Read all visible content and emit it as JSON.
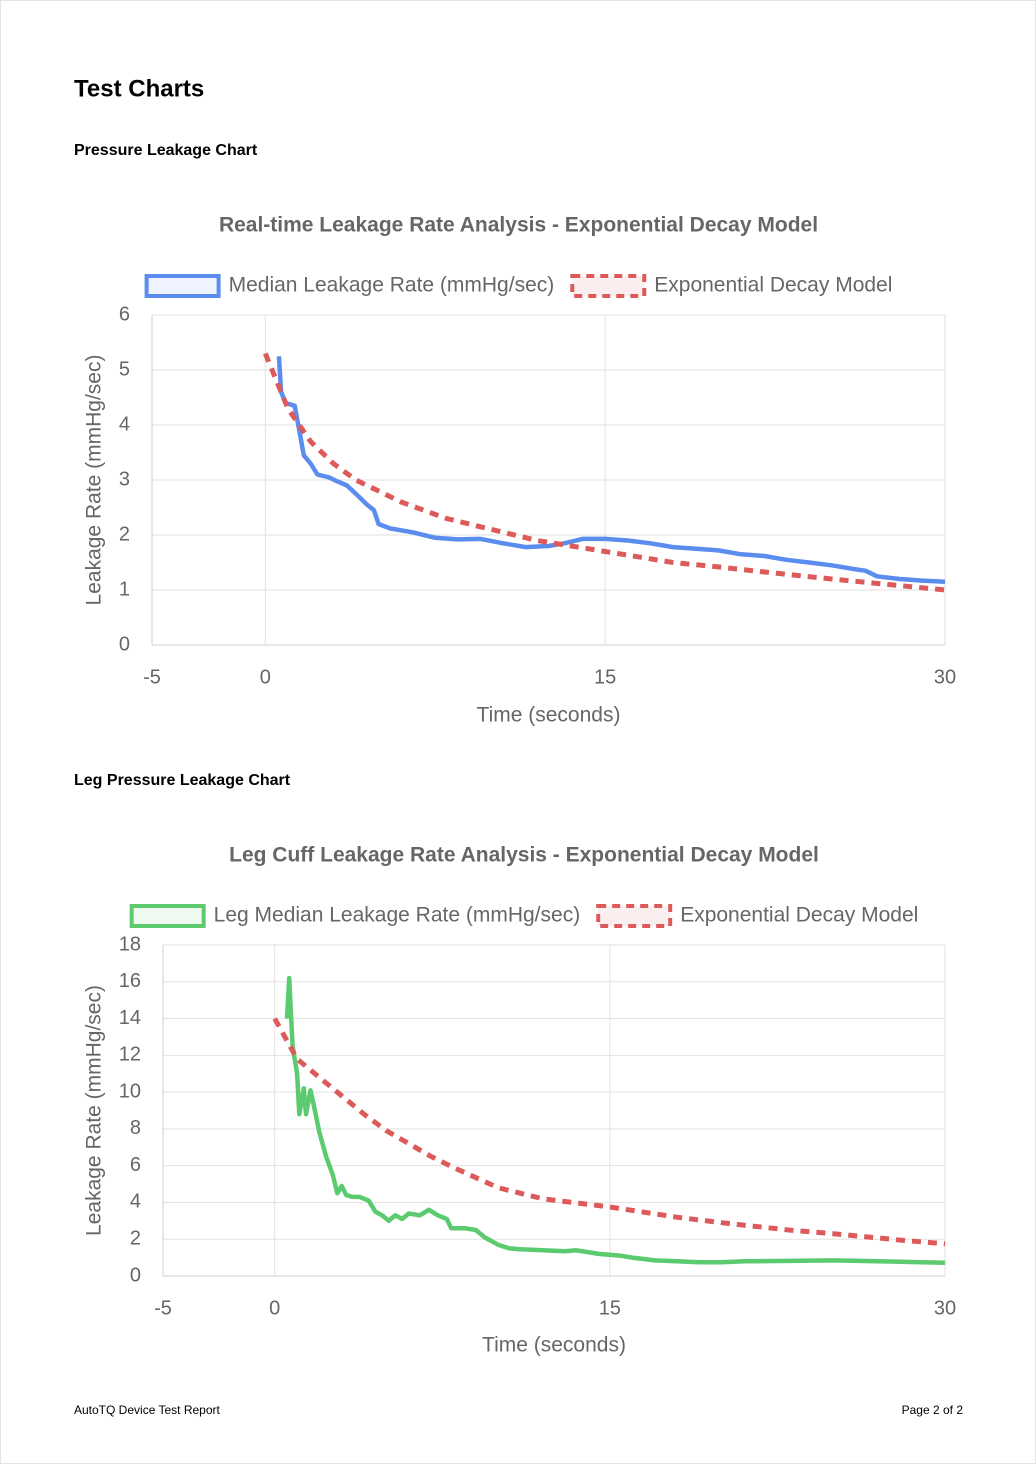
{
  "title": "Test Charts",
  "sections": [
    "Pressure Leakage Chart",
    "Leg Pressure Leakage Chart"
  ],
  "footer": {
    "left": "AutoTQ Device Test Report",
    "right": "Page 2 of 2"
  },
  "chart_data": [
    {
      "type": "line",
      "title": "Real-time Leakage Rate Analysis - Exponential Decay Model",
      "x_label": "Time (seconds)",
      "y_label": "Leakage Rate (mmHg/sec)",
      "xlim": [
        -5,
        30
      ],
      "xticks": [
        -5,
        0,
        15,
        30
      ],
      "ylim": [
        0,
        6
      ],
      "yticks": [
        0,
        1,
        2,
        3,
        4,
        5,
        6
      ],
      "grid": true,
      "legend": "top",
      "series": [
        {
          "name": "Median Leakage Rate (mmHg/sec)",
          "color": "#5b8dee",
          "dash": false,
          "x": [
            0.6,
            0.7,
            0.9,
            1.3,
            1.5,
            1.7,
            2.0,
            2.3,
            2.8,
            3.2,
            3.6,
            4.0,
            4.5,
            4.8,
            5.0,
            5.5,
            6.5,
            7.5,
            8.5,
            9.5,
            10.5,
            11.5,
            12.5,
            13.2,
            14.0,
            15,
            16,
            17,
            18,
            19,
            20,
            21,
            22,
            23,
            24,
            25,
            26,
            26.5,
            27,
            28,
            29,
            30
          ],
          "values": [
            5.25,
            4.6,
            4.4,
            4.35,
            3.9,
            3.45,
            3.3,
            3.1,
            3.05,
            2.97,
            2.9,
            2.75,
            2.55,
            2.45,
            2.2,
            2.12,
            2.05,
            1.95,
            1.92,
            1.93,
            1.85,
            1.78,
            1.8,
            1.85,
            1.93,
            1.93,
            1.9,
            1.85,
            1.78,
            1.75,
            1.72,
            1.65,
            1.62,
            1.55,
            1.5,
            1.45,
            1.38,
            1.35,
            1.25,
            1.2,
            1.17,
            1.15
          ]
        },
        {
          "name": "Exponential Decay Model",
          "color": "#dc5a5a",
          "dash": true,
          "x": [
            0,
            1,
            2,
            3,
            4,
            5,
            6,
            7,
            8,
            10,
            12,
            15,
            18,
            20,
            22,
            25,
            28,
            30
          ],
          "values": [
            5.3,
            4.3,
            3.7,
            3.3,
            3.0,
            2.8,
            2.6,
            2.45,
            2.3,
            2.1,
            1.9,
            1.7,
            1.5,
            1.42,
            1.33,
            1.2,
            1.08,
            1.0
          ]
        }
      ]
    },
    {
      "type": "line",
      "title": "Leg Cuff Leakage Rate Analysis - Exponential Decay Model",
      "x_label": "Time (seconds)",
      "y_label": "Leakage Rate (mmHg/sec)",
      "xlim": [
        -5,
        30
      ],
      "xticks": [
        -5,
        0,
        15,
        30
      ],
      "ylim": [
        0,
        18
      ],
      "yticks": [
        0,
        2,
        4,
        6,
        8,
        10,
        12,
        14,
        16,
        18
      ],
      "grid": true,
      "legend": "top",
      "series": [
        {
          "name": "Leg Median Leakage Rate (mmHg/sec)",
          "color": "#5ccb6f",
          "dash": false,
          "x": [
            0.55,
            0.65,
            0.8,
            1.0,
            1.1,
            1.3,
            1.4,
            1.6,
            1.8,
            2.0,
            2.3,
            2.6,
            2.8,
            3.0,
            3.2,
            3.5,
            3.8,
            4.2,
            4.5,
            4.8,
            5.1,
            5.4,
            5.7,
            6.0,
            6.5,
            6.9,
            7.3,
            7.7,
            7.9,
            8.5,
            9.0,
            9.4,
            10,
            10.5,
            11,
            12,
            13,
            13.5,
            14.5,
            15.5,
            16,
            17,
            18,
            19,
            20,
            21,
            23,
            25,
            27,
            29,
            30
          ],
          "values": [
            14,
            16.2,
            12.5,
            11,
            8.8,
            10.2,
            8.8,
            10.1,
            9.0,
            7.8,
            6.5,
            5.5,
            4.5,
            4.9,
            4.4,
            4.3,
            4.3,
            4.1,
            3.5,
            3.3,
            3.0,
            3.3,
            3.1,
            3.4,
            3.3,
            3.6,
            3.3,
            3.1,
            2.6,
            2.6,
            2.5,
            2.1,
            1.7,
            1.5,
            1.45,
            1.4,
            1.35,
            1.4,
            1.2,
            1.1,
            1.0,
            0.85,
            0.8,
            0.75,
            0.75,
            0.8,
            0.82,
            0.85,
            0.8,
            0.75,
            0.72
          ]
        },
        {
          "name": "Exponential Decay Model",
          "color": "#dc5a5a",
          "dash": true,
          "x": [
            0,
            1,
            2,
            3,
            4,
            5,
            6,
            7,
            8,
            10,
            12,
            15,
            18,
            20,
            23,
            25,
            28,
            30
          ],
          "values": [
            14,
            11.8,
            10.8,
            9.8,
            8.8,
            7.9,
            7.2,
            6.5,
            5.9,
            4.8,
            4.2,
            3.75,
            3.2,
            2.9,
            2.5,
            2.3,
            1.95,
            1.75
          ]
        }
      ]
    }
  ]
}
